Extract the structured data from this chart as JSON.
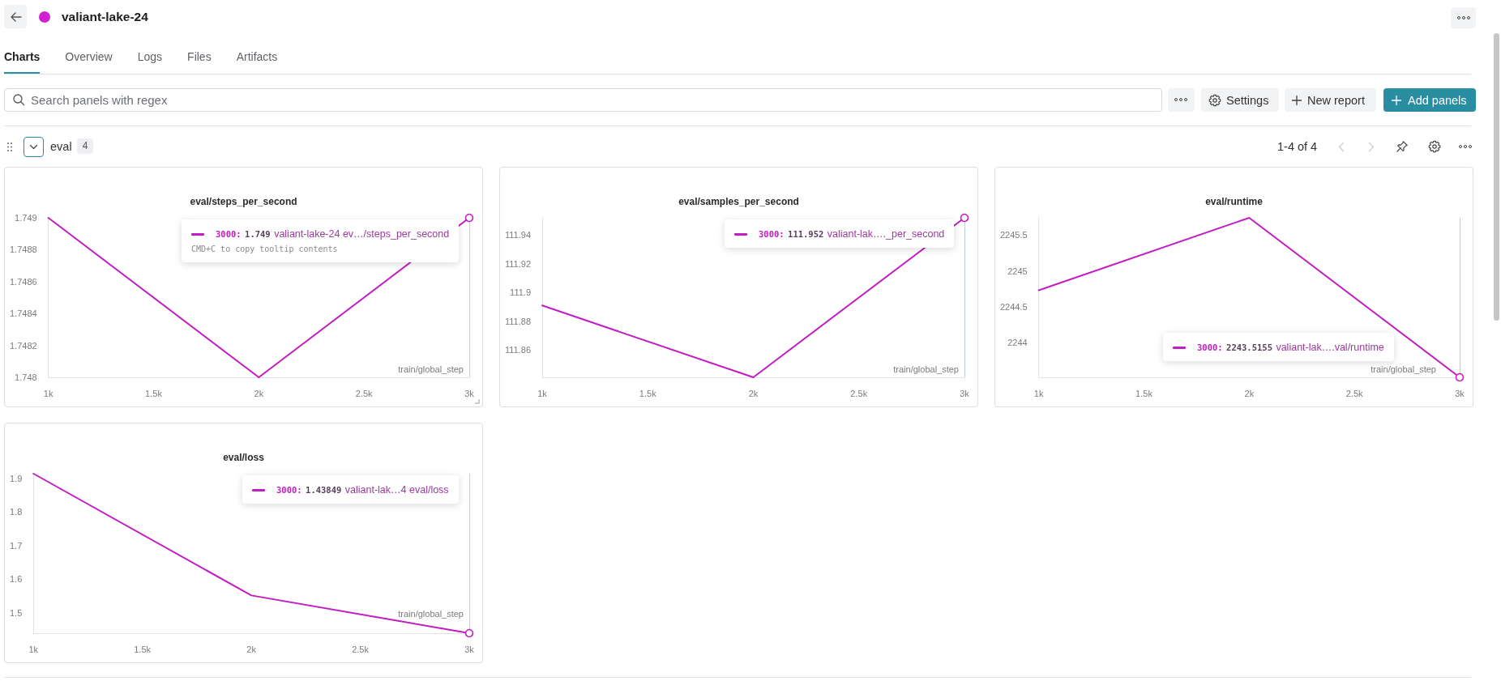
{
  "chart_data": [
    {
      "type": "other",
      "title": "valiant-lake-24",
      "annotations": [
        "Charts",
        "Overview",
        "Logs",
        "Files",
        "Artifacts",
        "Search panels with regex",
        "Settings",
        "New report",
        "Add panels",
        "eval",
        "4",
        "1-4 of 4"
      ]
    },
    {
      "type": "line",
      "title": "eval/steps_per_second",
      "xlabel": "train/global_step",
      "x": [
        1000,
        2000,
        3000
      ],
      "values": [
        1.749,
        1.748,
        1.749
      ],
      "color": "#c21cc2",
      "xlim": [
        1000,
        3000
      ],
      "xticks": [
        {
          "value": 1000,
          "label": "1k"
        },
        {
          "value": 1500,
          "label": "1.5k"
        },
        {
          "value": 2000,
          "label": "2k"
        },
        {
          "value": 2500,
          "label": "2.5k"
        },
        {
          "value": 3000,
          "label": "3k"
        }
      ],
      "ylim": [
        1.748,
        1.749
      ],
      "yticks": [
        1.748,
        1.7482,
        1.7484,
        1.7486,
        1.7488,
        1.749
      ],
      "grid": false,
      "ref_lines": [
        {
          "axis": "x",
          "value": 3000,
          "color": "#b3d5dc"
        }
      ],
      "annotations": [
        "3000: 1.749 valiant-lake-24 ev…/steps_per_second",
        "CMD+C to copy tooltip contents"
      ]
    },
    {
      "type": "line",
      "title": "eval/samples_per_second",
      "xlabel": "train/global_step",
      "x": [
        1000,
        2000,
        3000
      ],
      "values": [
        111.891,
        111.841,
        111.952
      ],
      "color": "#c21cc2",
      "xlim": [
        1000,
        3000
      ],
      "xticks": [
        {
          "value": 1000,
          "label": "1k"
        },
        {
          "value": 1500,
          "label": "1.5k"
        },
        {
          "value": 2000,
          "label": "2k"
        },
        {
          "value": 2500,
          "label": "2.5k"
        },
        {
          "value": 3000,
          "label": "3k"
        }
      ],
      "ylim": [
        111.841,
        111.952
      ],
      "yticks": [
        111.86,
        111.88,
        111.9,
        111.92,
        111.94
      ],
      "grid": false,
      "ref_lines": [
        {
          "axis": "x",
          "value": 3000,
          "color": "#b3d5dc"
        }
      ],
      "annotations": [
        "3000: 111.952 valiant-lak…._per_second"
      ]
    },
    {
      "type": "line",
      "title": "eval/runtime",
      "xlabel": "train/global_step",
      "x": [
        1000,
        2000,
        3000
      ],
      "values": [
        2244.73,
        2245.74,
        2243.5155
      ],
      "color": "#c21cc2",
      "xlim": [
        1000,
        3000
      ],
      "xticks": [
        {
          "value": 1000,
          "label": "1k"
        },
        {
          "value": 1500,
          "label": "1.5k"
        },
        {
          "value": 2000,
          "label": "2k"
        },
        {
          "value": 2500,
          "label": "2.5k"
        },
        {
          "value": 3000,
          "label": "3k"
        }
      ],
      "ylim": [
        2243.5155,
        2245.74
      ],
      "yticks": [
        2244,
        2244.5,
        2245,
        2245.5
      ],
      "grid": false,
      "ref_lines": [
        {
          "axis": "x",
          "value": 3000,
          "color": "#b3d5dc"
        }
      ],
      "annotations": [
        "3000: 2243.5155 valiant-lak….val/runtime"
      ]
    },
    {
      "type": "line",
      "title": "eval/loss",
      "xlabel": "train/global_step",
      "x": [
        1000,
        2000,
        3000
      ],
      "values": [
        1.914,
        1.551,
        1.43849
      ],
      "color": "#c21cc2",
      "xlim": [
        1000,
        3000
      ],
      "xticks": [
        {
          "value": 1000,
          "label": "1k"
        },
        {
          "value": 1500,
          "label": "1.5k"
        },
        {
          "value": 2000,
          "label": "2k"
        },
        {
          "value": 2500,
          "label": "2.5k"
        },
        {
          "value": 3000,
          "label": "3k"
        }
      ],
      "ylim": [
        1.43849,
        1.914
      ],
      "yticks": [
        1.5,
        1.6,
        1.7,
        1.8,
        1.9
      ],
      "grid": false,
      "ref_lines": [
        {
          "axis": "x",
          "value": 3000,
          "color": "#b3d5dc"
        }
      ],
      "annotations": [
        "3000: 1.43849 valiant-lak…4 eval/loss"
      ]
    }
  ]
}
